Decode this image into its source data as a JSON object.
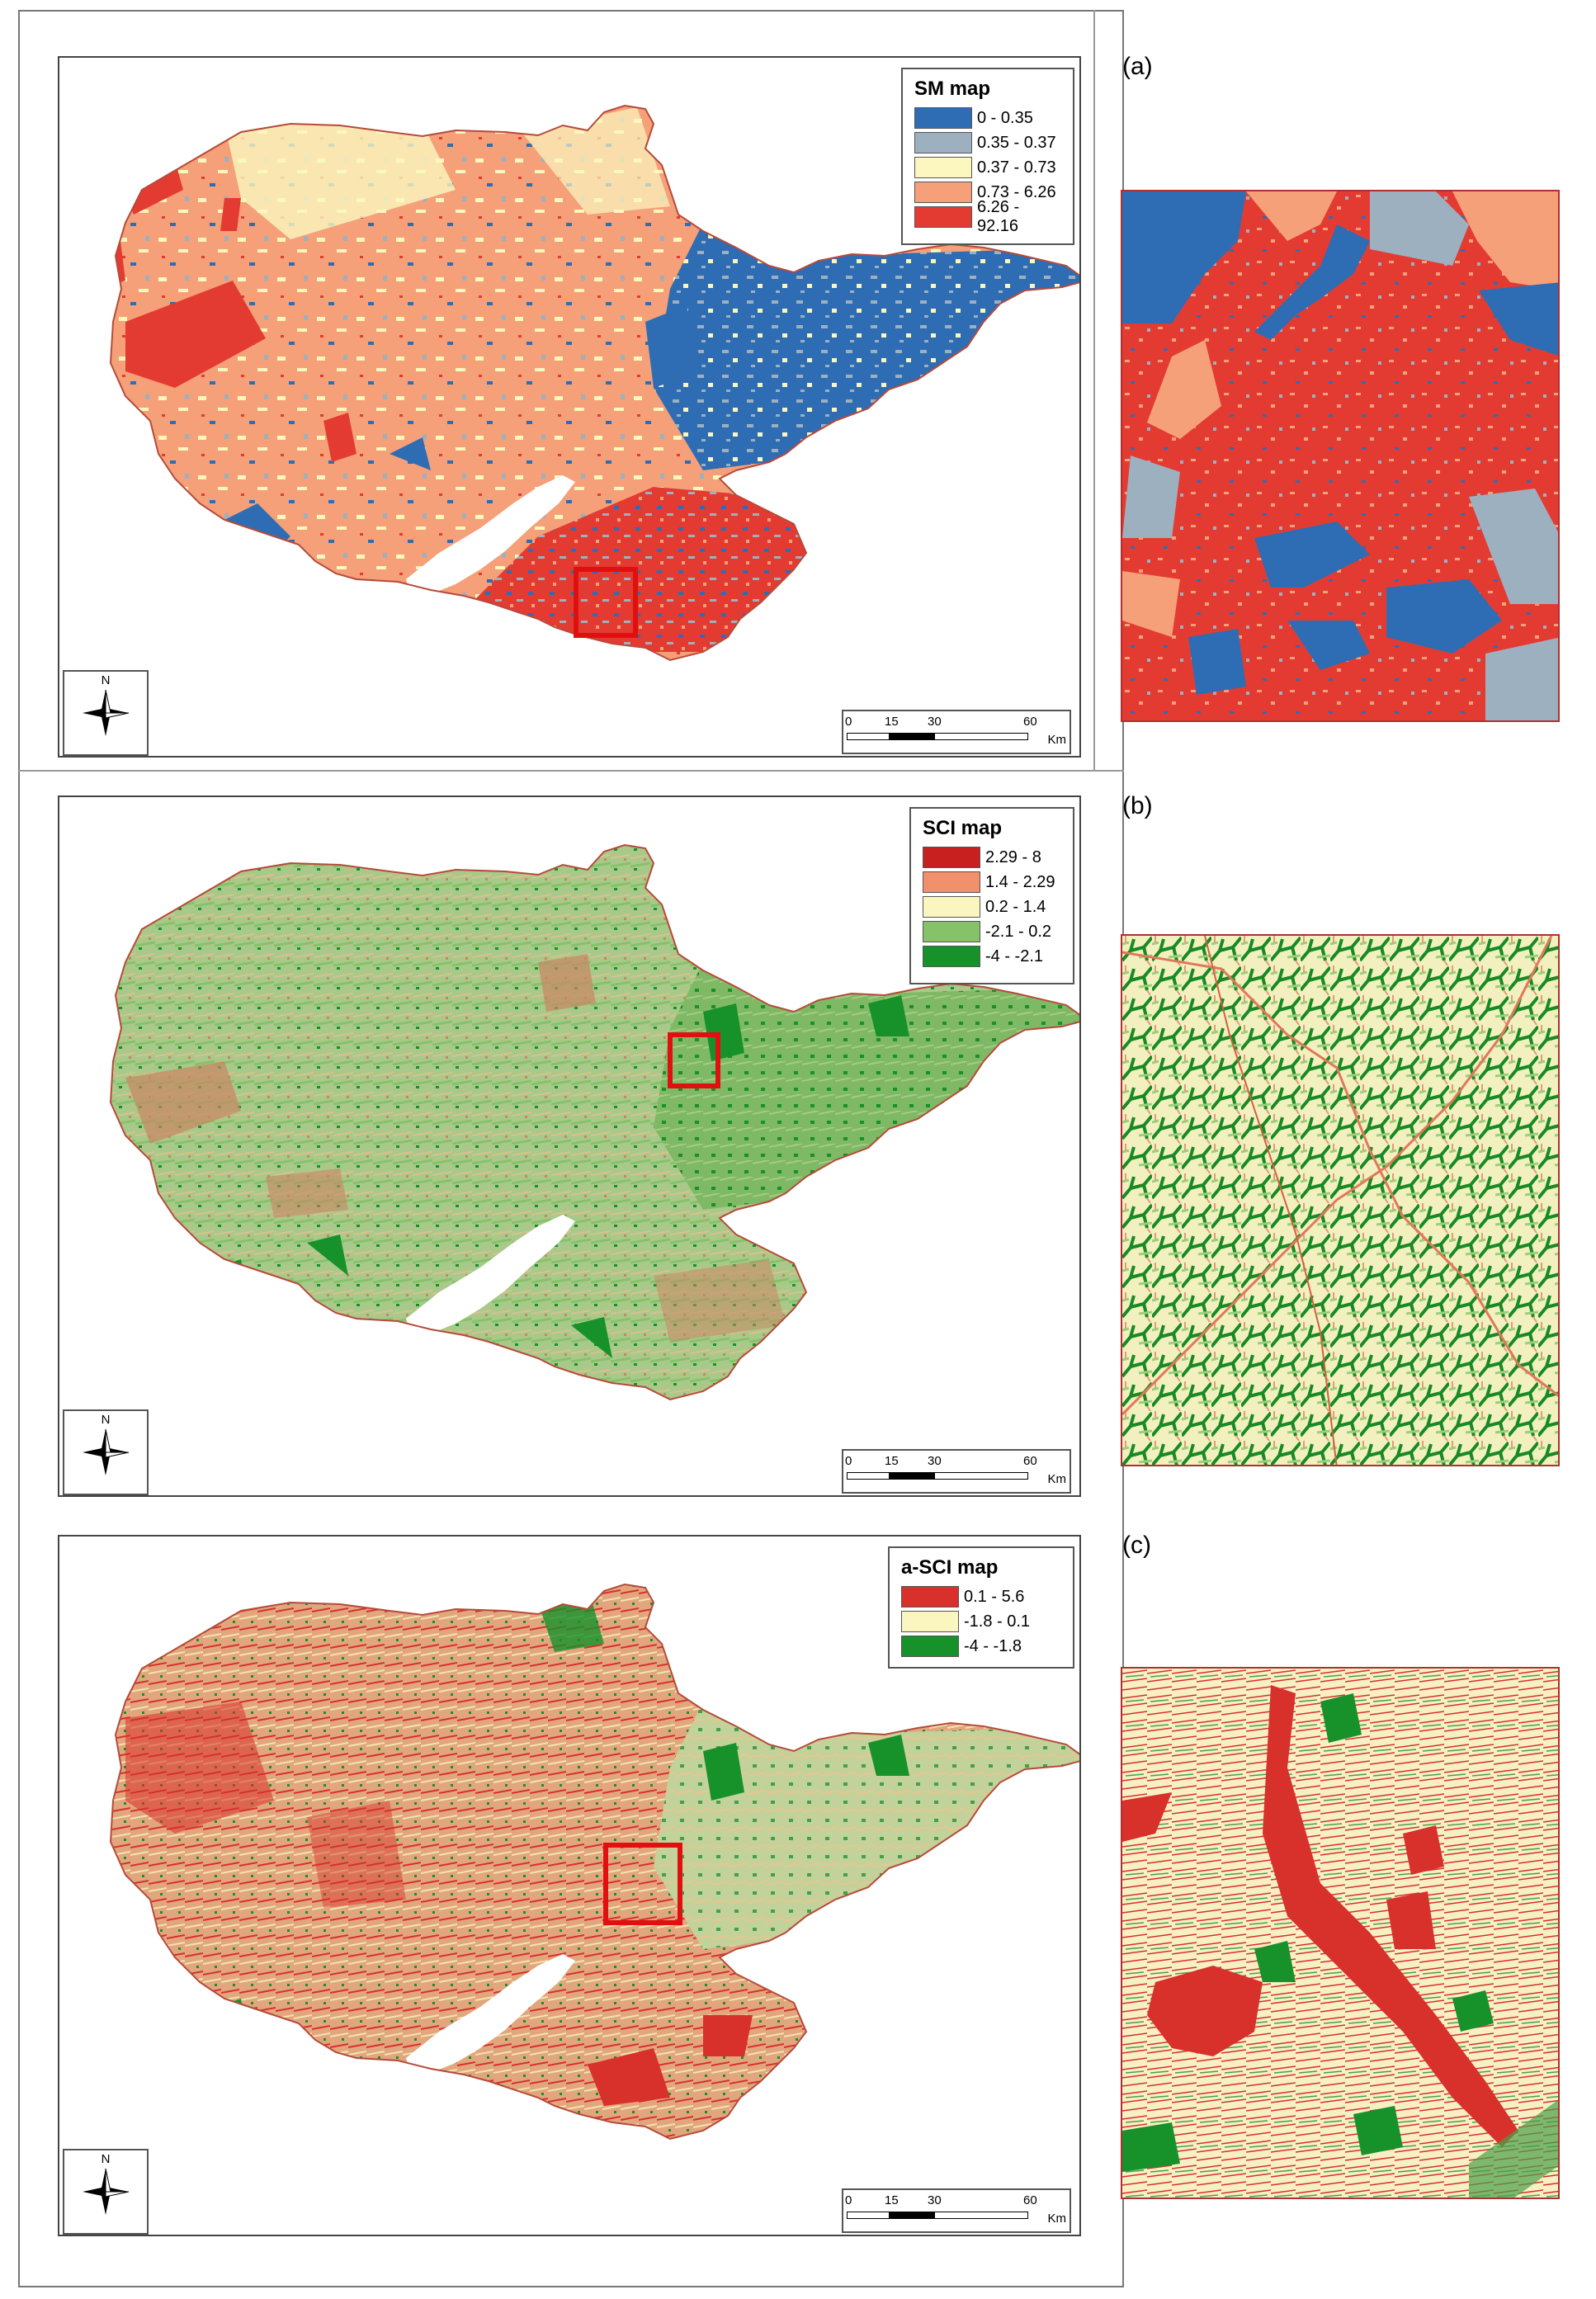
{
  "panels": [
    {
      "id": "sm",
      "label": "(a)",
      "legend": {
        "title": "SM map",
        "items": [
          {
            "label": "0 - 0.35",
            "color": "#2e6db4"
          },
          {
            "label": "0.35 - 0.37",
            "color": "#9db0c0"
          },
          {
            "label": "0.37 - 0.73",
            "color": "#fbf7bf"
          },
          {
            "label": "0.73 - 6.26",
            "color": "#f5a078"
          },
          {
            "label": "6.26 - 92.16",
            "color": "#e33b32"
          }
        ]
      },
      "north_label": "N",
      "scale": {
        "ticks": [
          "0",
          "15",
          "30",
          "60"
        ],
        "unit": "Km"
      }
    },
    {
      "id": "sci",
      "label": "(b)",
      "legend": {
        "title": "SCI map",
        "items": [
          {
            "label": "2.29 - 8",
            "color": "#c8201e"
          },
          {
            "label": "1.4 - 2.29",
            "color": "#f1906a"
          },
          {
            "label": "0.2 - 1.4",
            "color": "#fbf6c0"
          },
          {
            "label": "-2.1 - 0.2",
            "color": "#86c26a"
          },
          {
            "label": "-4 - -2.1",
            "color": "#17912a"
          }
        ]
      },
      "north_label": "N",
      "scale": {
        "ticks": [
          "0",
          "15",
          "30",
          "60"
        ],
        "unit": "Km"
      }
    },
    {
      "id": "asci",
      "label": "(c)",
      "legend": {
        "title": "a-SCI map",
        "items": [
          {
            "label": "0.1 - 5.6",
            "color": "#d8302a"
          },
          {
            "label": "-1.8 - 0.1",
            "color": "#fbf6c0"
          },
          {
            "label": "-4 - -1.8",
            "color": "#17912a"
          }
        ]
      },
      "north_label": "N",
      "scale": {
        "ticks": [
          "0",
          "15",
          "30",
          "60"
        ],
        "unit": "Km"
      }
    }
  ]
}
